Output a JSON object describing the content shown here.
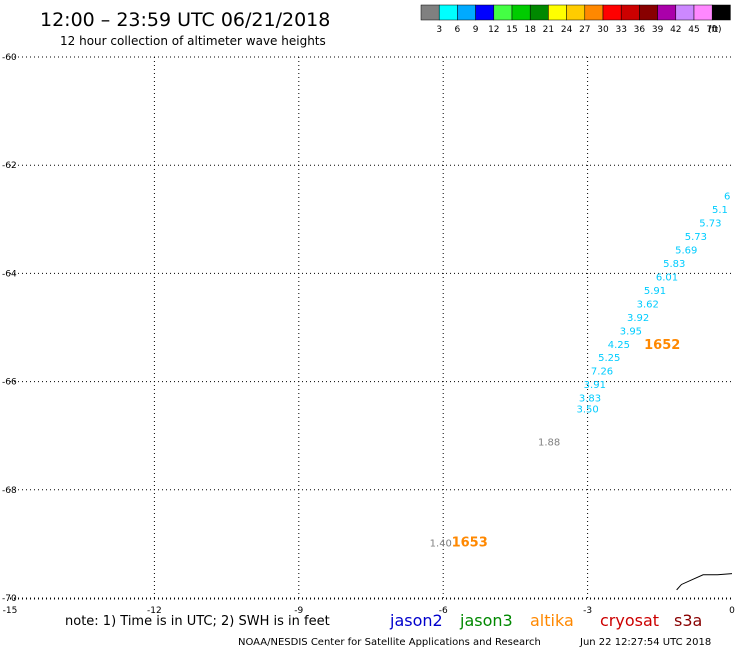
{
  "header": {
    "title": "12:00 – 23:59 UTC 06/21/2018",
    "subtitle": "12 hour collection of altimeter wave heights"
  },
  "colorbar": {
    "unit_label": "(ft)",
    "bins": [
      {
        "label": "3",
        "color": "#808080"
      },
      {
        "label": "6",
        "color": "#00ffff"
      },
      {
        "label": "9",
        "color": "#00aaff"
      },
      {
        "label": "12",
        "color": "#0000ff"
      },
      {
        "label": "15",
        "color": "#44ff44"
      },
      {
        "label": "18",
        "color": "#00cc00"
      },
      {
        "label": "21",
        "color": "#008800"
      },
      {
        "label": "24",
        "color": "#ffff00"
      },
      {
        "label": "27",
        "color": "#ffcc00"
      },
      {
        "label": "30",
        "color": "#ff8800"
      },
      {
        "label": "33",
        "color": "#ff0000"
      },
      {
        "label": "36",
        "color": "#cc0000"
      },
      {
        "label": "39",
        "color": "#880000"
      },
      {
        "label": "42",
        "color": "#aa00aa"
      },
      {
        "label": "45",
        "color": "#cc88ff"
      },
      {
        "label": "70",
        "color": "#ff88ff"
      },
      {
        "label": "",
        "color": "#000000"
      }
    ]
  },
  "footer": {
    "note": "note: 1) Time is in UTC; 2) SWH is in feet",
    "credit": "NOAA/NESDIS Center for Satellite Applications and Research",
    "timestamp": "Jun 22 12:27:54 UTC 2018",
    "satellites": [
      {
        "name": "jason2",
        "color": "#0000cc"
      },
      {
        "name": "jason3",
        "color": "#008800"
      },
      {
        "name": "altika",
        "color": "#ff8800"
      },
      {
        "name": "cryosat",
        "color": "#cc0000"
      },
      {
        "name": "s3a",
        "color": "#880000"
      }
    ]
  },
  "chart_data": {
    "type": "scatter",
    "xlim": [
      -15,
      0
    ],
    "ylim": [
      -70,
      -60
    ],
    "xticks": [
      {
        "value": -15,
        "label": "-15"
      },
      {
        "value": -12,
        "label": "-12"
      },
      {
        "value": -9,
        "label": "-9"
      },
      {
        "value": -6,
        "label": "-6"
      },
      {
        "value": -3,
        "label": "-3"
      },
      {
        "value": 0,
        "label": "0"
      }
    ],
    "yticks": [
      {
        "value": -60,
        "label": "-60"
      },
      {
        "value": -62,
        "label": "-62"
      },
      {
        "value": -64,
        "label": "-64"
      },
      {
        "value": -66,
        "label": "-66"
      },
      {
        "value": -68,
        "label": "-68"
      },
      {
        "value": -70,
        "label": "-70"
      }
    ],
    "grid": true,
    "points": [
      {
        "x": -3.0,
        "y": -66.57,
        "label": "3.50",
        "color": "#00ccff"
      },
      {
        "x": -2.95,
        "y": -66.37,
        "label": "3.83",
        "color": "#00ccff"
      },
      {
        "x": -2.85,
        "y": -66.12,
        "label": "3.91",
        "color": "#00ccff"
      },
      {
        "x": -2.7,
        "y": -65.87,
        "label": "7.26",
        "color": "#00ccff"
      },
      {
        "x": -2.55,
        "y": -65.62,
        "label": "5.25",
        "color": "#00ccff"
      },
      {
        "x": -2.35,
        "y": -65.38,
        "label": "4.25",
        "color": "#00ccff"
      },
      {
        "x": -2.1,
        "y": -65.13,
        "label": "3.95",
        "color": "#00ccff"
      },
      {
        "x": -1.95,
        "y": -64.88,
        "label": "3.92",
        "color": "#00ccff"
      },
      {
        "x": -1.75,
        "y": -64.63,
        "label": "3.62",
        "color": "#00ccff"
      },
      {
        "x": -1.6,
        "y": -64.38,
        "label": "5.91",
        "color": "#00ccff"
      },
      {
        "x": -1.35,
        "y": -64.13,
        "label": "6.01",
        "color": "#00ccff"
      },
      {
        "x": -1.2,
        "y": -63.88,
        "label": "5.83",
        "color": "#00ccff"
      },
      {
        "x": -0.95,
        "y": -63.63,
        "label": "5.69",
        "color": "#00ccff"
      },
      {
        "x": -0.75,
        "y": -63.38,
        "label": "5.73",
        "color": "#00ccff"
      },
      {
        "x": -0.45,
        "y": -63.13,
        "label": "5.73",
        "color": "#00ccff"
      },
      {
        "x": -0.25,
        "y": -62.88,
        "label": "5.1",
        "color": "#00ccff"
      },
      {
        "x": -0.1,
        "y": -62.63,
        "label": "6",
        "color": "#00ccff"
      },
      {
        "x": -3.8,
        "y": -67.18,
        "label": "1.88",
        "color": "#808080"
      },
      {
        "x": -6.05,
        "y": -69.05,
        "label": "1.40",
        "color": "#808080"
      }
    ],
    "annotations": [
      {
        "x": -1.45,
        "y": -65.4,
        "label": "1652",
        "color": "#ff8800"
      },
      {
        "x": -5.45,
        "y": -69.05,
        "label": "1653",
        "color": "#ff8800"
      }
    ],
    "coastline": [
      [
        -1.15,
        -69.85
      ],
      [
        -1.05,
        -69.75
      ],
      [
        -0.8,
        -69.65
      ],
      [
        -0.6,
        -69.57
      ],
      [
        -0.3,
        -69.57
      ],
      [
        0.0,
        -69.55
      ]
    ]
  }
}
